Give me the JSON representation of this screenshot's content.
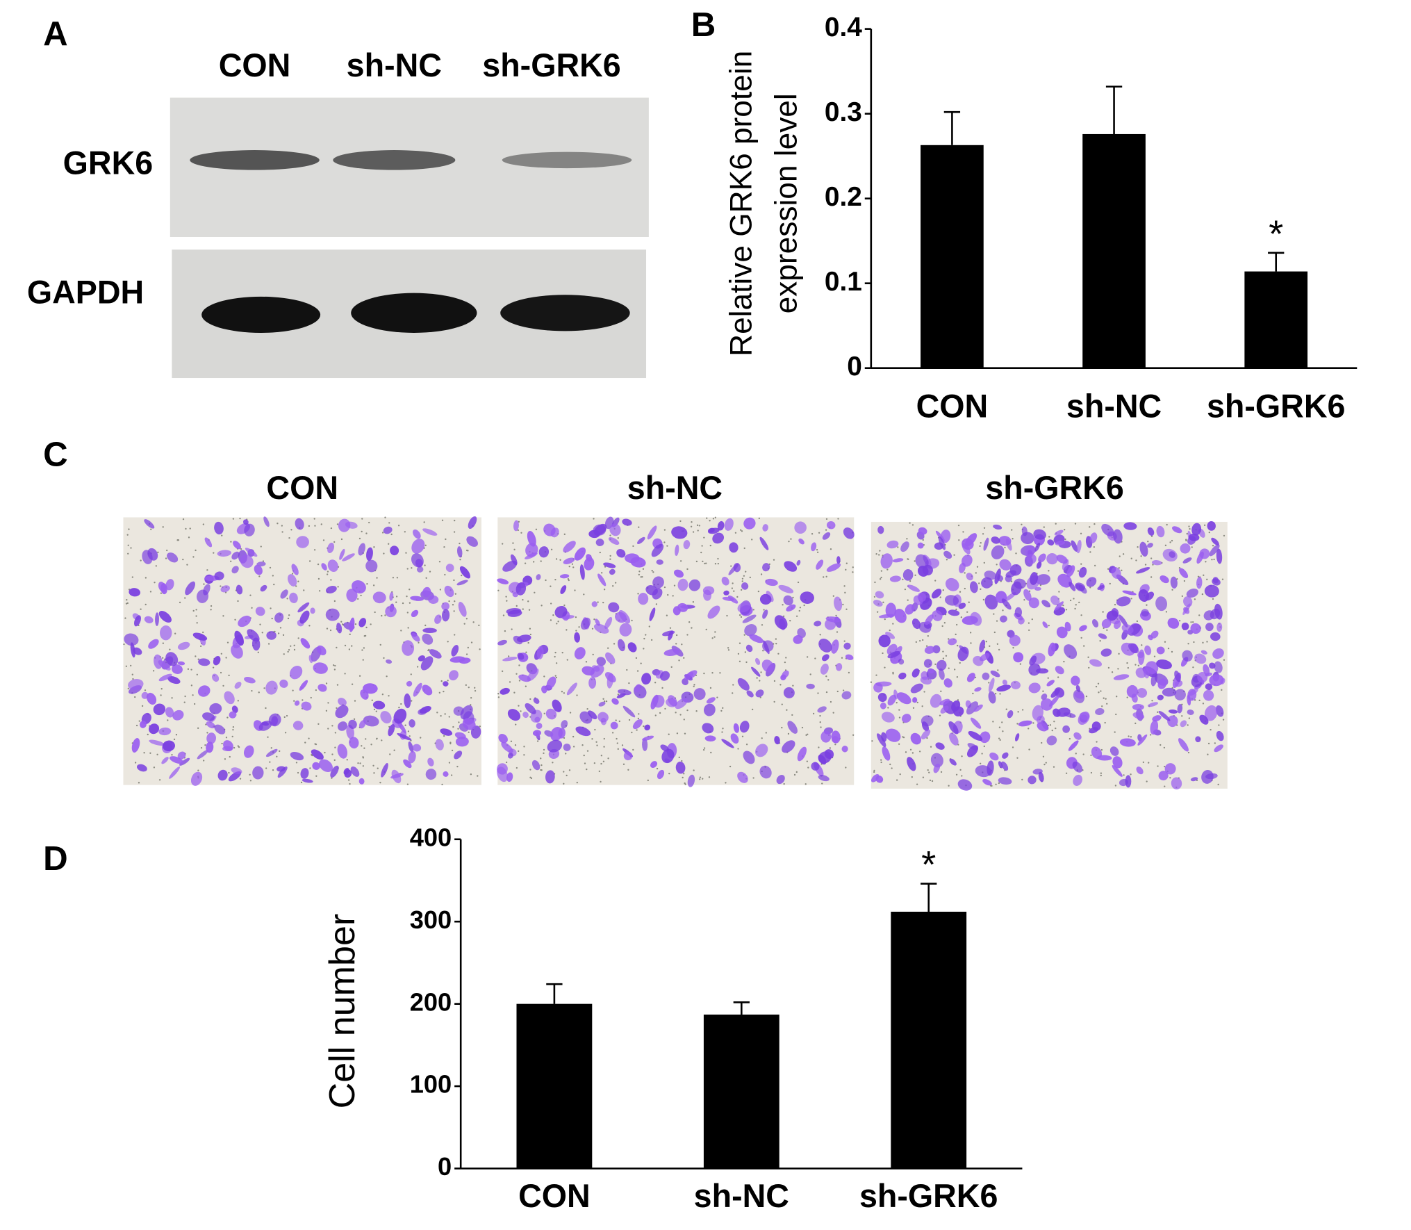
{
  "figure": {
    "panel_labels": [
      "A",
      "B",
      "C",
      "D"
    ]
  },
  "blot": {
    "lanes": [
      "CON",
      "sh-NC",
      "sh-GRK6"
    ],
    "rows": [
      "GRK6",
      "GAPDH"
    ]
  },
  "micrographs": {
    "labels": [
      "CON",
      "sh-NC",
      "sh-GRK6"
    ]
  },
  "chart_data": [
    {
      "type": "bar",
      "ylabel": [
        "Relative GRK6 protein",
        "expression level"
      ],
      "categories": [
        "CON",
        "sh-NC",
        "sh-GRK6"
      ],
      "values": [
        0.263,
        0.276,
        0.114
      ],
      "errors": [
        0.039,
        0.056,
        0.022
      ],
      "color": "#000000",
      "ylim": [
        0,
        0.4
      ],
      "yticks": [
        0,
        0.1,
        0.2,
        0.3,
        0.4
      ],
      "annotations": [
        {
          "text": "*",
          "category": "sh-GRK6"
        }
      ]
    },
    {
      "type": "bar",
      "ylabel": [
        "Cell number"
      ],
      "categories": [
        "CON",
        "sh-NC",
        "sh-GRK6"
      ],
      "values": [
        200,
        187,
        312
      ],
      "errors": [
        24,
        15,
        34
      ],
      "color": "#000000",
      "ylim": [
        0,
        400
      ],
      "yticks": [
        0,
        100,
        200,
        300,
        400
      ],
      "annotations": [
        {
          "text": "*",
          "category": "sh-GRK6"
        }
      ]
    }
  ]
}
